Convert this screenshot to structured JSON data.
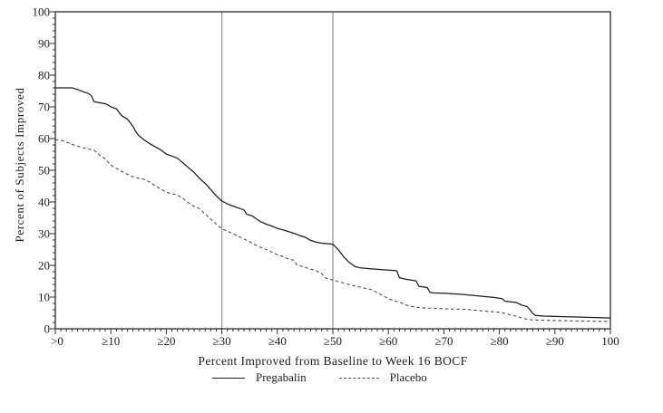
{
  "chart_data": {
    "type": "line",
    "title": "",
    "xlabel": "Percent Improved from Baseline to Week 16 BOCF",
    "ylabel": "Percent of Subjects Improved",
    "xlim": [
      0,
      100
    ],
    "ylim": [
      0,
      100
    ],
    "grid": false,
    "legend_position": "bottom",
    "x_ticks": {
      "values": [
        0,
        10,
        20,
        30,
        40,
        50,
        60,
        70,
        80,
        90,
        100
      ],
      "labels": [
        ">0",
        "≥10",
        "≥20",
        "≥30",
        "≥40",
        "≥50",
        "≥60",
        "≥70",
        "≥80",
        "≥90",
        "100"
      ]
    },
    "y_ticks": {
      "values": [
        0,
        10,
        20,
        30,
        40,
        50,
        60,
        70,
        80,
        90,
        100
      ],
      "labels": [
        "0",
        "10",
        "20",
        "30",
        "40",
        "50",
        "60",
        "70",
        "80",
        "90",
        "100"
      ]
    },
    "x_minor_step": 1,
    "y_minor_step": 2,
    "reference_lines_x": [
      30,
      50
    ],
    "series": [
      {
        "name": "Pregabalin",
        "style": "solid",
        "points": [
          [
            0,
            76
          ],
          [
            3,
            76
          ],
          [
            4,
            75.5
          ],
          [
            5,
            74.8
          ],
          [
            6,
            74.2
          ],
          [
            6.5,
            73.5
          ],
          [
            7,
            71.6
          ],
          [
            9,
            71
          ],
          [
            9.5,
            70.6
          ],
          [
            10,
            70
          ],
          [
            11,
            69.4
          ],
          [
            11.5,
            68.2
          ],
          [
            12,
            67.2
          ],
          [
            13,
            66.1
          ],
          [
            13.5,
            65
          ],
          [
            14,
            63.8
          ],
          [
            14.5,
            62.2
          ],
          [
            15,
            61
          ],
          [
            16,
            59.6
          ],
          [
            17,
            58.4
          ],
          [
            18,
            57.4
          ],
          [
            19,
            56.4
          ],
          [
            20,
            55.1
          ],
          [
            21,
            54.5
          ],
          [
            22,
            53.8
          ],
          [
            23,
            52.3
          ],
          [
            24,
            50.8
          ],
          [
            25,
            49.3
          ],
          [
            26,
            47.4
          ],
          [
            27,
            45.9
          ],
          [
            28,
            43.9
          ],
          [
            29,
            41.9
          ],
          [
            30,
            40.3
          ],
          [
            31,
            39.4
          ],
          [
            32,
            38.7
          ],
          [
            33,
            38.1
          ],
          [
            34,
            37.5
          ],
          [
            34.5,
            36.1
          ],
          [
            35.5,
            35.6
          ],
          [
            36,
            34.9
          ],
          [
            37,
            33.8
          ],
          [
            38,
            33
          ],
          [
            39,
            32.4
          ],
          [
            40,
            31.7
          ],
          [
            41,
            31.2
          ],
          [
            42,
            30.7
          ],
          [
            43,
            30.1
          ],
          [
            44,
            29.4
          ],
          [
            45,
            28.9
          ],
          [
            46,
            27.9
          ],
          [
            47,
            27.3
          ],
          [
            48,
            27
          ],
          [
            50,
            26.7
          ],
          [
            51,
            24.9
          ],
          [
            52,
            22.6
          ],
          [
            53,
            20.9
          ],
          [
            54,
            19.6
          ],
          [
            55,
            19.2
          ],
          [
            57,
            18.9
          ],
          [
            60,
            18.5
          ],
          [
            61.5,
            18.3
          ],
          [
            62,
            16.1
          ],
          [
            63,
            15.7
          ],
          [
            65,
            15.1
          ],
          [
            65.5,
            13.4
          ],
          [
            67,
            13
          ],
          [
            67.5,
            11.5
          ],
          [
            68,
            11.3
          ],
          [
            70,
            11.2
          ],
          [
            73,
            10.9
          ],
          [
            76,
            10.4
          ],
          [
            79,
            9.9
          ],
          [
            80.5,
            9.5
          ],
          [
            81,
            8.7
          ],
          [
            83,
            8.3
          ],
          [
            84,
            7.5
          ],
          [
            85,
            7
          ],
          [
            85.5,
            6
          ],
          [
            86,
            4.9
          ],
          [
            86.5,
            4.2
          ],
          [
            88,
            4
          ],
          [
            92,
            3.8
          ],
          [
            96,
            3.6
          ],
          [
            100,
            3.4
          ]
        ]
      },
      {
        "name": "Placebo",
        "style": "dashed",
        "points": [
          [
            0,
            59.6
          ],
          [
            1,
            59.5
          ],
          [
            2,
            58.9
          ],
          [
            3,
            58.2
          ],
          [
            4,
            57.6
          ],
          [
            5,
            57.1
          ],
          [
            6,
            56.7
          ],
          [
            7,
            56.3
          ],
          [
            7.5,
            55.6
          ],
          [
            8,
            54.7
          ],
          [
            9,
            53.6
          ],
          [
            10,
            51.6
          ],
          [
            11,
            50.6
          ],
          [
            12,
            49.6
          ],
          [
            13,
            48.7
          ],
          [
            14,
            47.9
          ],
          [
            15,
            47.5
          ],
          [
            16,
            47.1
          ],
          [
            17,
            46.3
          ],
          [
            18,
            45.1
          ],
          [
            19,
            44.1
          ],
          [
            20,
            43.1
          ],
          [
            21,
            42.6
          ],
          [
            22,
            42.2
          ],
          [
            23,
            41.1
          ],
          [
            24,
            39.7
          ],
          [
            25,
            38.6
          ],
          [
            26,
            37.9
          ],
          [
            27,
            36.2
          ],
          [
            28,
            34.6
          ],
          [
            29,
            33
          ],
          [
            30,
            31.5
          ],
          [
            31,
            30.8
          ],
          [
            32,
            30
          ],
          [
            33,
            29.1
          ],
          [
            34,
            28.3
          ],
          [
            35,
            27.5
          ],
          [
            36,
            26.5
          ],
          [
            37,
            25.7
          ],
          [
            38,
            25
          ],
          [
            39,
            24.2
          ],
          [
            40,
            23.4
          ],
          [
            41,
            22.8
          ],
          [
            42,
            22
          ],
          [
            43,
            21.6
          ],
          [
            43.5,
            20.2
          ],
          [
            44,
            19.9
          ],
          [
            45,
            19.4
          ],
          [
            46,
            18.8
          ],
          [
            47,
            18.3
          ],
          [
            48,
            17.4
          ],
          [
            48.5,
            16.2
          ],
          [
            49,
            15.8
          ],
          [
            50,
            15.4
          ],
          [
            51,
            14.9
          ],
          [
            52,
            14.4
          ],
          [
            53,
            13.9
          ],
          [
            54,
            13.5
          ],
          [
            55,
            13.1
          ],
          [
            56,
            12.7
          ],
          [
            57,
            12.3
          ],
          [
            58,
            11.4
          ],
          [
            59,
            10.5
          ],
          [
            60,
            9.5
          ],
          [
            61,
            8.9
          ],
          [
            62,
            8.4
          ],
          [
            63,
            7.6
          ],
          [
            64,
            7.1
          ],
          [
            65,
            6.8
          ],
          [
            66,
            6.6
          ],
          [
            68,
            6.5
          ],
          [
            70,
            6.3
          ],
          [
            72,
            6.2
          ],
          [
            74,
            6.1
          ],
          [
            76,
            5.8
          ],
          [
            78,
            5.5
          ],
          [
            80,
            5.2
          ],
          [
            81,
            4.9
          ],
          [
            82,
            4.4
          ],
          [
            83,
            4
          ],
          [
            84,
            3.4
          ],
          [
            85,
            3
          ],
          [
            86,
            2.8
          ],
          [
            88,
            2.7
          ],
          [
            90,
            2.6
          ],
          [
            93,
            2.5
          ],
          [
            96,
            2.4
          ],
          [
            100,
            2.3
          ]
        ]
      }
    ]
  },
  "colors": {
    "frame": "#2b2b2b",
    "tick": "#2b2b2b",
    "reference_line": "#8f8f8f",
    "pregabalin_line": "#1c1c1c",
    "placebo_line": "#4b4b4b",
    "background": "#ffffff"
  }
}
